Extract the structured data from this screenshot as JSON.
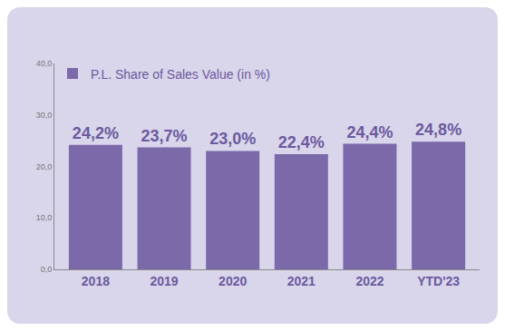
{
  "chart_data": {
    "type": "bar",
    "categories": [
      "2018",
      "2019",
      "2020",
      "2021",
      "2022",
      "YTD'23"
    ],
    "series": [
      {
        "name": "P.L. Share of Sales Value (in %)",
        "color": "#7b69aa",
        "values": [
          24.2,
          23.7,
          23.0,
          22.4,
          24.4,
          24.8
        ],
        "value_labels": [
          "24,2%",
          "23,7%",
          "23,0%",
          "22,4%",
          "24,4%",
          "24,8%"
        ]
      }
    ],
    "ylim": [
      0,
      40
    ],
    "yticks": [
      {
        "value": 0,
        "label": "0,0"
      },
      {
        "value": 10,
        "label": "10,0"
      },
      {
        "value": 20,
        "label": "20,0"
      },
      {
        "value": 30,
        "label": "30,0"
      },
      {
        "value": 40,
        "label": "40,0"
      }
    ],
    "grid": false,
    "legend": "top left",
    "data_labels": true
  }
}
